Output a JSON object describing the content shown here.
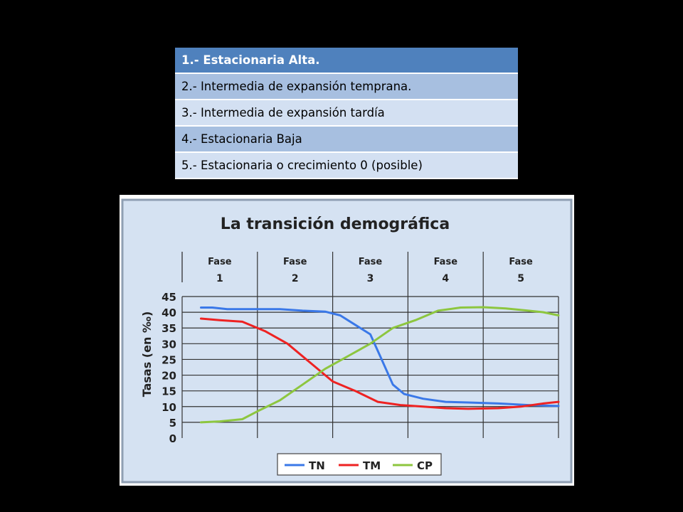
{
  "phases_table": {
    "rows": [
      "1.- Estacionaria Alta.",
      "2.- Intermedia de expansión temprana.",
      "3.- Intermedia de expansión tardía",
      "4.- Estacionaria Baja",
      "5.- Estacionaria o crecimiento 0 (posible)"
    ]
  },
  "chart_data": {
    "type": "line",
    "title": "La transición demográfica",
    "ylabel": "Tasas (en ‰)",
    "ylim": [
      0,
      45
    ],
    "yticks": [
      0,
      5,
      10,
      15,
      20,
      25,
      30,
      35,
      40,
      45
    ],
    "xlim": [
      0,
      5
    ],
    "grid": true,
    "legend_position": "bottom-center",
    "phases": [
      {
        "word": "Fase",
        "num": "1"
      },
      {
        "word": "Fase",
        "num": "2"
      },
      {
        "word": "Fase",
        "num": "3"
      },
      {
        "word": "Fase",
        "num": "4"
      },
      {
        "word": "Fase",
        "num": "5"
      }
    ],
    "series": [
      {
        "name": "TN",
        "color": "#3a78e8",
        "points": [
          [
            0.25,
            41.5
          ],
          [
            0.4,
            41.5
          ],
          [
            0.6,
            41
          ],
          [
            1.0,
            41
          ],
          [
            1.3,
            41
          ],
          [
            1.6,
            40.5
          ],
          [
            1.9,
            40.2
          ],
          [
            2.1,
            39
          ],
          [
            2.3,
            36
          ],
          [
            2.5,
            33
          ],
          [
            2.65,
            25
          ],
          [
            2.8,
            17
          ],
          [
            2.95,
            14
          ],
          [
            3.2,
            12.5
          ],
          [
            3.5,
            11.5
          ],
          [
            3.8,
            11.3
          ],
          [
            4.2,
            11
          ],
          [
            4.6,
            10.5
          ],
          [
            5.0,
            10.2
          ]
        ]
      },
      {
        "name": "TM",
        "color": "#ee2222",
        "points": [
          [
            0.25,
            38
          ],
          [
            0.5,
            37.5
          ],
          [
            0.8,
            37
          ],
          [
            1.1,
            34
          ],
          [
            1.4,
            30
          ],
          [
            1.7,
            24
          ],
          [
            2.0,
            18
          ],
          [
            2.3,
            15
          ],
          [
            2.6,
            11.5
          ],
          [
            2.9,
            10.5
          ],
          [
            3.2,
            10
          ],
          [
            3.5,
            9.5
          ],
          [
            3.8,
            9.3
          ],
          [
            4.2,
            9.5
          ],
          [
            4.5,
            10
          ],
          [
            4.8,
            11
          ],
          [
            5.0,
            11.5
          ]
        ]
      },
      {
        "name": "CP",
        "color": "#8dc63f",
        "points": [
          [
            0.25,
            5
          ],
          [
            0.5,
            5.3
          ],
          [
            0.8,
            6
          ],
          [
            1.0,
            8.5
          ],
          [
            1.3,
            12
          ],
          [
            1.6,
            17
          ],
          [
            1.9,
            22
          ],
          [
            2.2,
            26
          ],
          [
            2.5,
            30
          ],
          [
            2.8,
            35
          ],
          [
            3.1,
            37.5
          ],
          [
            3.4,
            40.5
          ],
          [
            3.7,
            41.5
          ],
          [
            4.0,
            41.6
          ],
          [
            4.3,
            41.2
          ],
          [
            4.6,
            40.5
          ],
          [
            4.8,
            40
          ],
          [
            5.0,
            39
          ]
        ]
      }
    ]
  }
}
